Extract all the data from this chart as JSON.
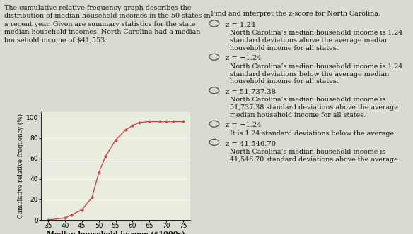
{
  "title_text": "The cumulative relative frequency graph describes the\ndistribution of median household incomes in the 50 states in\na recent year. Given are summary statistics for the state\nmedian household incomes. North Carolina had a median\nhousehold income of $41,553.",
  "graph_x": [
    35,
    40,
    42,
    45,
    48,
    50,
    52,
    55,
    58,
    60,
    62,
    65,
    68,
    70,
    72,
    75
  ],
  "graph_y": [
    0,
    2,
    5,
    10,
    22,
    46,
    62,
    78,
    88,
    92,
    95,
    96,
    96,
    96,
    96,
    96
  ],
  "xlabel": "Median household income ($1000s)",
  "ylabel": "Cumulative relative frequency (%)",
  "ylim": [
    0,
    105
  ],
  "xlim": [
    33,
    77
  ],
  "xticks": [
    35,
    40,
    45,
    50,
    55,
    60,
    65,
    70,
    75
  ],
  "yticks": [
    0,
    20,
    40,
    60,
    80,
    100
  ],
  "line_color": "#cc4444",
  "marker_color": "#cc4444",
  "bg_color": "#d8dbd0",
  "plot_bg": "#e8ede0",
  "question_title": "Find and interpret the z-score for North Carolina.",
  "options": [
    {
      "label": "z = 1.24",
      "desc": "North Carolina’s median household income is 1.24\nstandard deviations above the average median\nhousehold income for all states."
    },
    {
      "label": "z = −1.24",
      "desc": "North Carolina’s median household income is 1.24\nstandard deviations below the average median\nhousehold income for all states."
    },
    {
      "label": "z = 51,737.38",
      "desc": "North Carolina’s median household income is\n51,737.38 standard deviations above the average\nmedian household income for all states."
    },
    {
      "label": "z = −1.24",
      "desc": "It is 1.24 standard deviations below the average."
    },
    {
      "label": "z = 41,546.70",
      "desc": "North Carolina’s median household income is\n41,546.70 standard deviations above the average"
    }
  ],
  "text_color": "#1a1a1a",
  "font_size_text": 6.8,
  "font_size_options_label": 7.2,
  "font_size_options_desc": 6.8,
  "font_size_axis": 6.5,
  "font_size_ylabel": 6.2,
  "font_size_xlabel": 7.0
}
